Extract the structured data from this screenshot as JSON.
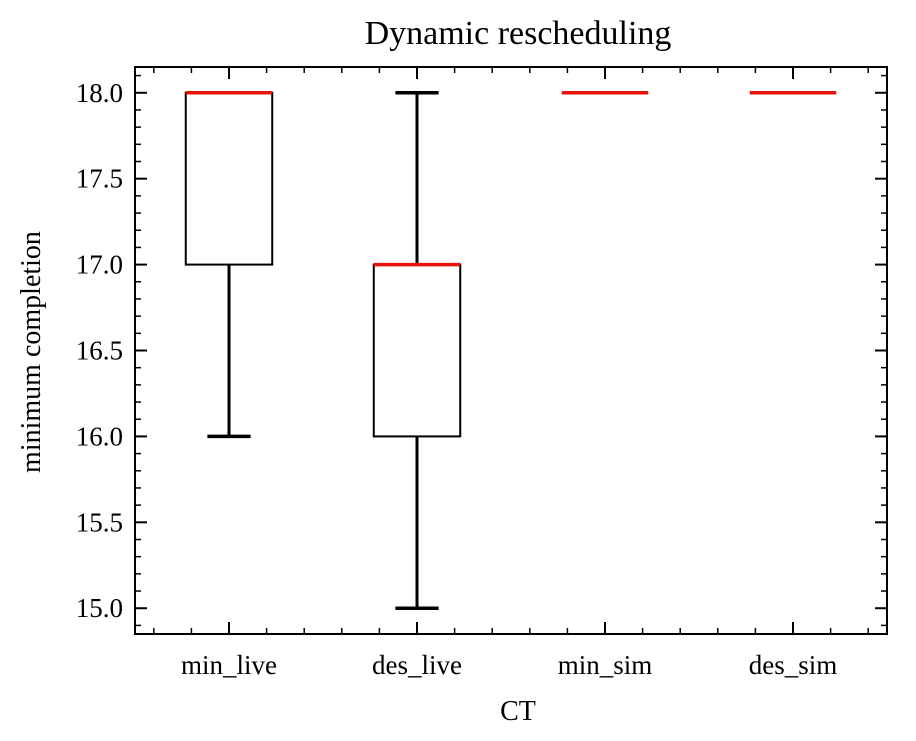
{
  "chart_data": {
    "type": "box",
    "title": "Dynamic rescheduling",
    "xlabel": "CT",
    "ylabel": "minimum completion",
    "ylim": [
      14.85,
      18.15
    ],
    "yticks": [
      15.0,
      15.5,
      16.0,
      16.5,
      17.0,
      17.5,
      18.0
    ],
    "ytick_labels": [
      "15.0",
      "15.5",
      "16.0",
      "16.5",
      "17.0",
      "17.5",
      "18.0"
    ],
    "yminor_step": 0.1,
    "categories": [
      "min_live",
      "des_live",
      "min_sim",
      "des_sim"
    ],
    "boxes": [
      {
        "name": "min_live",
        "whisker_low": 16.0,
        "q1": 17.0,
        "median": 18.0,
        "q3": 18.0,
        "whisker_high": 18.0
      },
      {
        "name": "des_live",
        "whisker_low": 15.0,
        "q1": 16.0,
        "median": 17.0,
        "q3": 17.0,
        "whisker_high": 18.0
      },
      {
        "name": "min_sim",
        "whisker_low": 18.0,
        "q1": 18.0,
        "median": 18.0,
        "q3": 18.0,
        "whisker_high": 18.0
      },
      {
        "name": "des_sim",
        "whisker_low": 18.0,
        "q1": 18.0,
        "median": 18.0,
        "q3": 18.0,
        "whisker_high": 18.0
      }
    ],
    "colors": {
      "median": "#e8120c",
      "box": "#000000",
      "whisker": "#000000"
    },
    "grid": false,
    "tick_direction": "in",
    "mirror_ticks": true
  }
}
